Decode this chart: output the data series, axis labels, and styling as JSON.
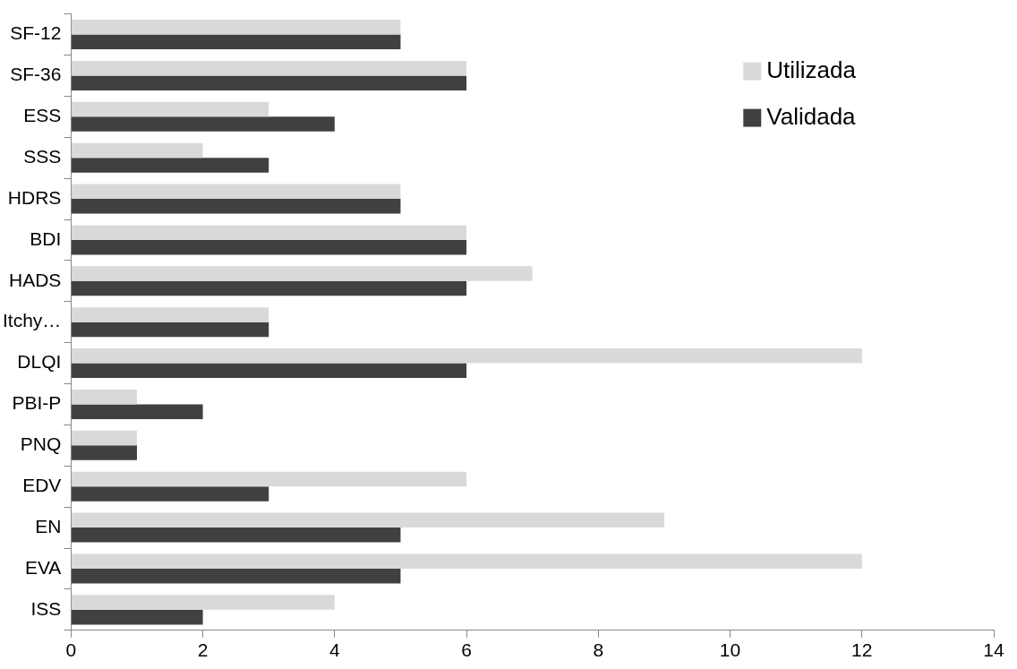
{
  "chart_data": {
    "type": "bar",
    "orientation": "horizontal",
    "categories": [
      "SF-12",
      "SF-36",
      "ESS",
      "SSS",
      "HDRS",
      "BDI",
      "HADS",
      "Itchy…",
      "DLQI",
      "PBI-P",
      "PNQ",
      "EDV",
      "EN",
      "EVA",
      "ISS"
    ],
    "series": [
      {
        "name": "Utilizada",
        "color": "#d9d9d9",
        "values": [
          5,
          6,
          3,
          2,
          5,
          6,
          7,
          3,
          12,
          1,
          1,
          6,
          9,
          12,
          4
        ]
      },
      {
        "name": "Validada",
        "color": "#404040",
        "values": [
          5,
          6,
          4,
          3,
          5,
          6,
          6,
          3,
          6,
          2,
          1,
          3,
          5,
          5,
          2
        ]
      }
    ],
    "xlim": [
      0,
      14
    ],
    "xticks": [
      0,
      2,
      4,
      6,
      8,
      10,
      12,
      14
    ],
    "grid": false,
    "legend": "top right"
  }
}
